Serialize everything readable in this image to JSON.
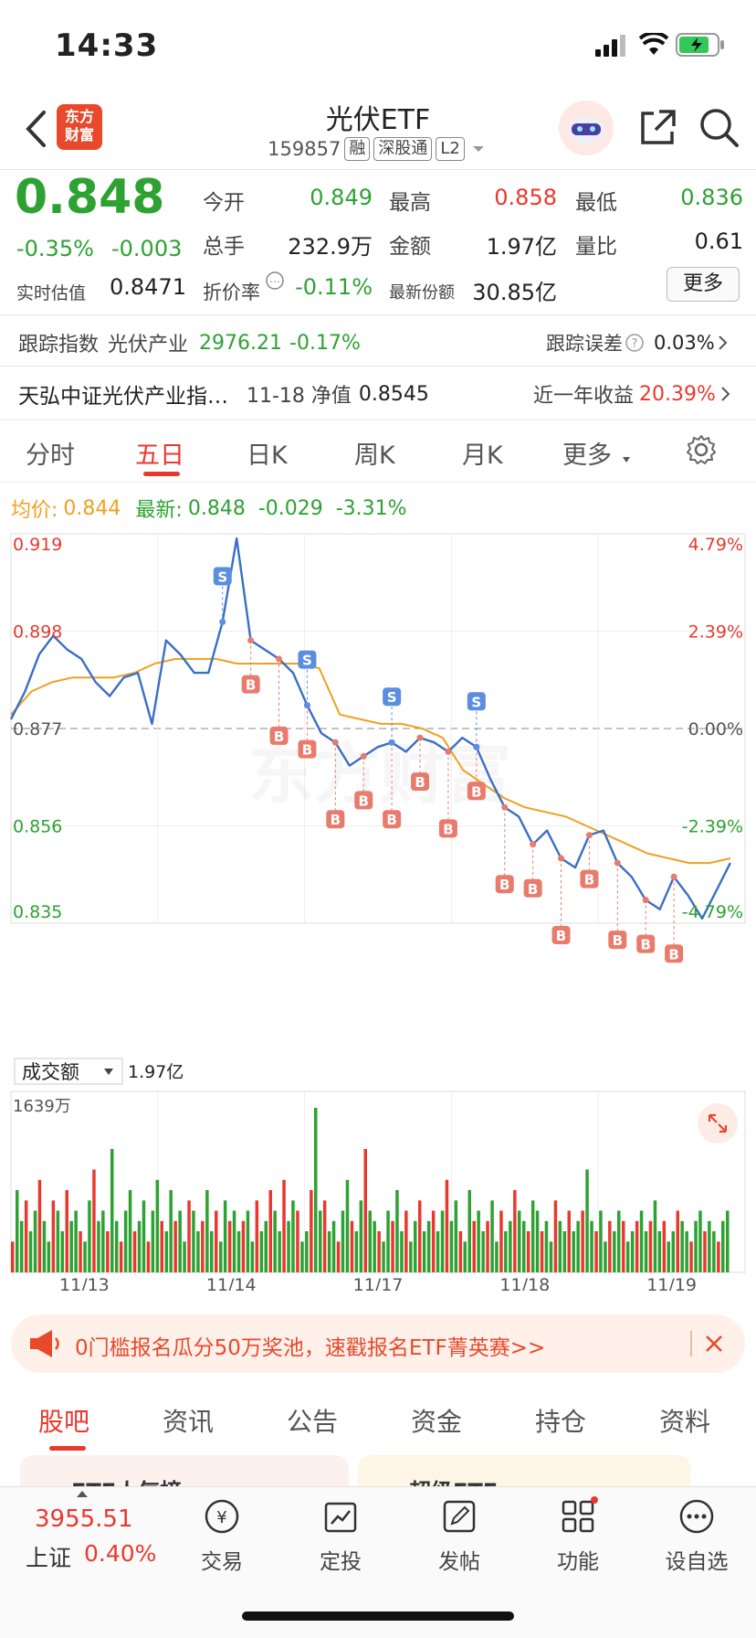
{
  "status_bar": {
    "time": "14:33"
  },
  "header": {
    "app_logo_text": "东方财富",
    "title": "光伏ETF",
    "code": "159857",
    "badges": [
      "融",
      "深股通",
      "L2"
    ]
  },
  "quote": {
    "price": "0.848",
    "change_pct": "-0.35%",
    "change": "-0.003",
    "open_label": "今开",
    "open": "0.849",
    "high_label": "最高",
    "high": "0.858",
    "low_label": "最低",
    "low": "0.836",
    "volume_label": "总手",
    "volume": "232.9万",
    "amount_label": "金额",
    "amount": "1.97亿",
    "vol_ratio_label": "量比",
    "vol_ratio": "0.61",
    "iopv_label": "实时估值",
    "iopv": "0.8471",
    "premium_label": "折价率",
    "premium": "-0.11%",
    "shares_label": "最新份额",
    "shares": "30.85亿",
    "more_button": "更多"
  },
  "tracking": {
    "index_label": "跟踪指数",
    "index_name": "光伏产业",
    "index_value": "2976.21",
    "index_change": "-0.17%",
    "error_label": "跟踪误差",
    "error_value": "0.03%"
  },
  "fund_row": {
    "name": "天弘中证光伏产业指…",
    "nav_label": "11-18 净值",
    "nav_value": "0.8545",
    "yearly_label": "近一年收益",
    "yearly_value": "20.39%"
  },
  "chart_tabs": {
    "items": [
      "分时",
      "五日",
      "日K",
      "周K",
      "月K",
      "更多"
    ],
    "active": "五日"
  },
  "chart_info": {
    "avg_label": "均价:",
    "avg_value": "0.844",
    "latest_label": "最新:",
    "latest_value": "0.848",
    "latest_change": "-0.029",
    "latest_pct": "-3.31%"
  },
  "chart_data": {
    "type": "line",
    "y_ticks_left": [
      "0.919",
      "0.898",
      "0.877",
      "0.856",
      "0.835"
    ],
    "y_ticks_right": [
      "4.79%",
      "2.39%",
      "0.00%",
      "-2.39%",
      "-4.79%"
    ],
    "ylim": [
      0.835,
      0.919
    ],
    "prev_close": 0.877,
    "x_ticks": [
      "11/13",
      "11/14",
      "11/17",
      "11/18",
      "11/19"
    ],
    "series": [
      {
        "values": [
          0.879,
          0.885,
          0.893,
          0.897,
          0.894,
          0.892,
          0.887,
          0.884,
          0.888,
          0.889,
          0.878,
          0.896,
          0.893,
          0.889,
          0.889,
          0.9,
          0.918,
          0.896,
          0.894,
          0.892,
          0.889,
          0.882,
          0.876,
          0.874,
          0.869,
          0.871,
          0.873,
          0.874,
          0.872,
          0.875,
          0.874,
          0.872,
          0.875,
          0.873,
          0.866,
          0.86,
          0.858,
          0.852,
          0.855,
          0.849,
          0.847,
          0.854,
          0.855,
          0.848,
          0.845,
          0.84,
          0.838,
          0.845,
          0.841,
          0.836,
          0.842,
          0.848
        ]
      },
      {
        "values": [
          0.88,
          0.885,
          0.887,
          0.888,
          0.888,
          0.888,
          0.889,
          0.891,
          0.892,
          0.892,
          0.892,
          0.891,
          0.891,
          0.891,
          0.891,
          0.89,
          0.88,
          0.879,
          0.878,
          0.878,
          0.877,
          0.875,
          0.868,
          0.865,
          0.862,
          0.86,
          0.859,
          0.858,
          0.856,
          0.854,
          0.852,
          0.85,
          0.849,
          0.848,
          0.848,
          0.849
        ]
      }
    ],
    "buy_markers": 16,
    "sell_markers": 4,
    "volume_panel": {
      "selector_label": "成交额",
      "total": "1.97亿",
      "max_label": "1639万",
      "bar_values": [
        3,
        8,
        5,
        7,
        4,
        6,
        9,
        5,
        3,
        7,
        6,
        4,
        8,
        5,
        6,
        4,
        3,
        7,
        10,
        5,
        6,
        4,
        12,
        5,
        3,
        6,
        8,
        4,
        5,
        7,
        3,
        6,
        9,
        5,
        4,
        8,
        5,
        6,
        3,
        7,
        6,
        4,
        5,
        8,
        4,
        6,
        3,
        7,
        5,
        6,
        4,
        5,
        6,
        3,
        7,
        4,
        5,
        8,
        6,
        4,
        9,
        5,
        7,
        6,
        3,
        4,
        8,
        16,
        6,
        7,
        4,
        5,
        3,
        6,
        9,
        5,
        4,
        7,
        12,
        6,
        5,
        4,
        3,
        6,
        5,
        8,
        4,
        6,
        3,
        5,
        7,
        4,
        5,
        6,
        4,
        6,
        9,
        5,
        7,
        4,
        3,
        8,
        5,
        6,
        4,
        5,
        7,
        3,
        6,
        4,
        5,
        8,
        6,
        5,
        4,
        7,
        6,
        4,
        5,
        3,
        7,
        5,
        4,
        6,
        4,
        5,
        6,
        10,
        5,
        4,
        6,
        3,
        5,
        4,
        6,
        5,
        3,
        4,
        5,
        6,
        4,
        5,
        7,
        4,
        5,
        3,
        4,
        6,
        5,
        4,
        3,
        5,
        6,
        4,
        5,
        4,
        3,
        5,
        6
      ]
    }
  },
  "watermark": "东方财富",
  "banner": {
    "text": "0门槛报名瓜分50万奖池，速戳报名ETF菁英赛>>"
  },
  "bottom_tabs": {
    "items": [
      "股吧",
      "资讯",
      "公告",
      "资金",
      "持仓",
      "资料"
    ],
    "active": "股吧"
  },
  "peek": {
    "item1": "ETF人气榜",
    "item2": "超级ETF"
  },
  "tabbar": {
    "index_value": "3955.51",
    "index_name": "上证",
    "index_change": "0.40%",
    "items": [
      "交易",
      "定投",
      "发帖",
      "功能",
      "设自选"
    ]
  },
  "colors": {
    "up": "#e8392f",
    "down": "#2da232",
    "price_line": "#3a6fc7",
    "avg_line": "#f0a020"
  }
}
